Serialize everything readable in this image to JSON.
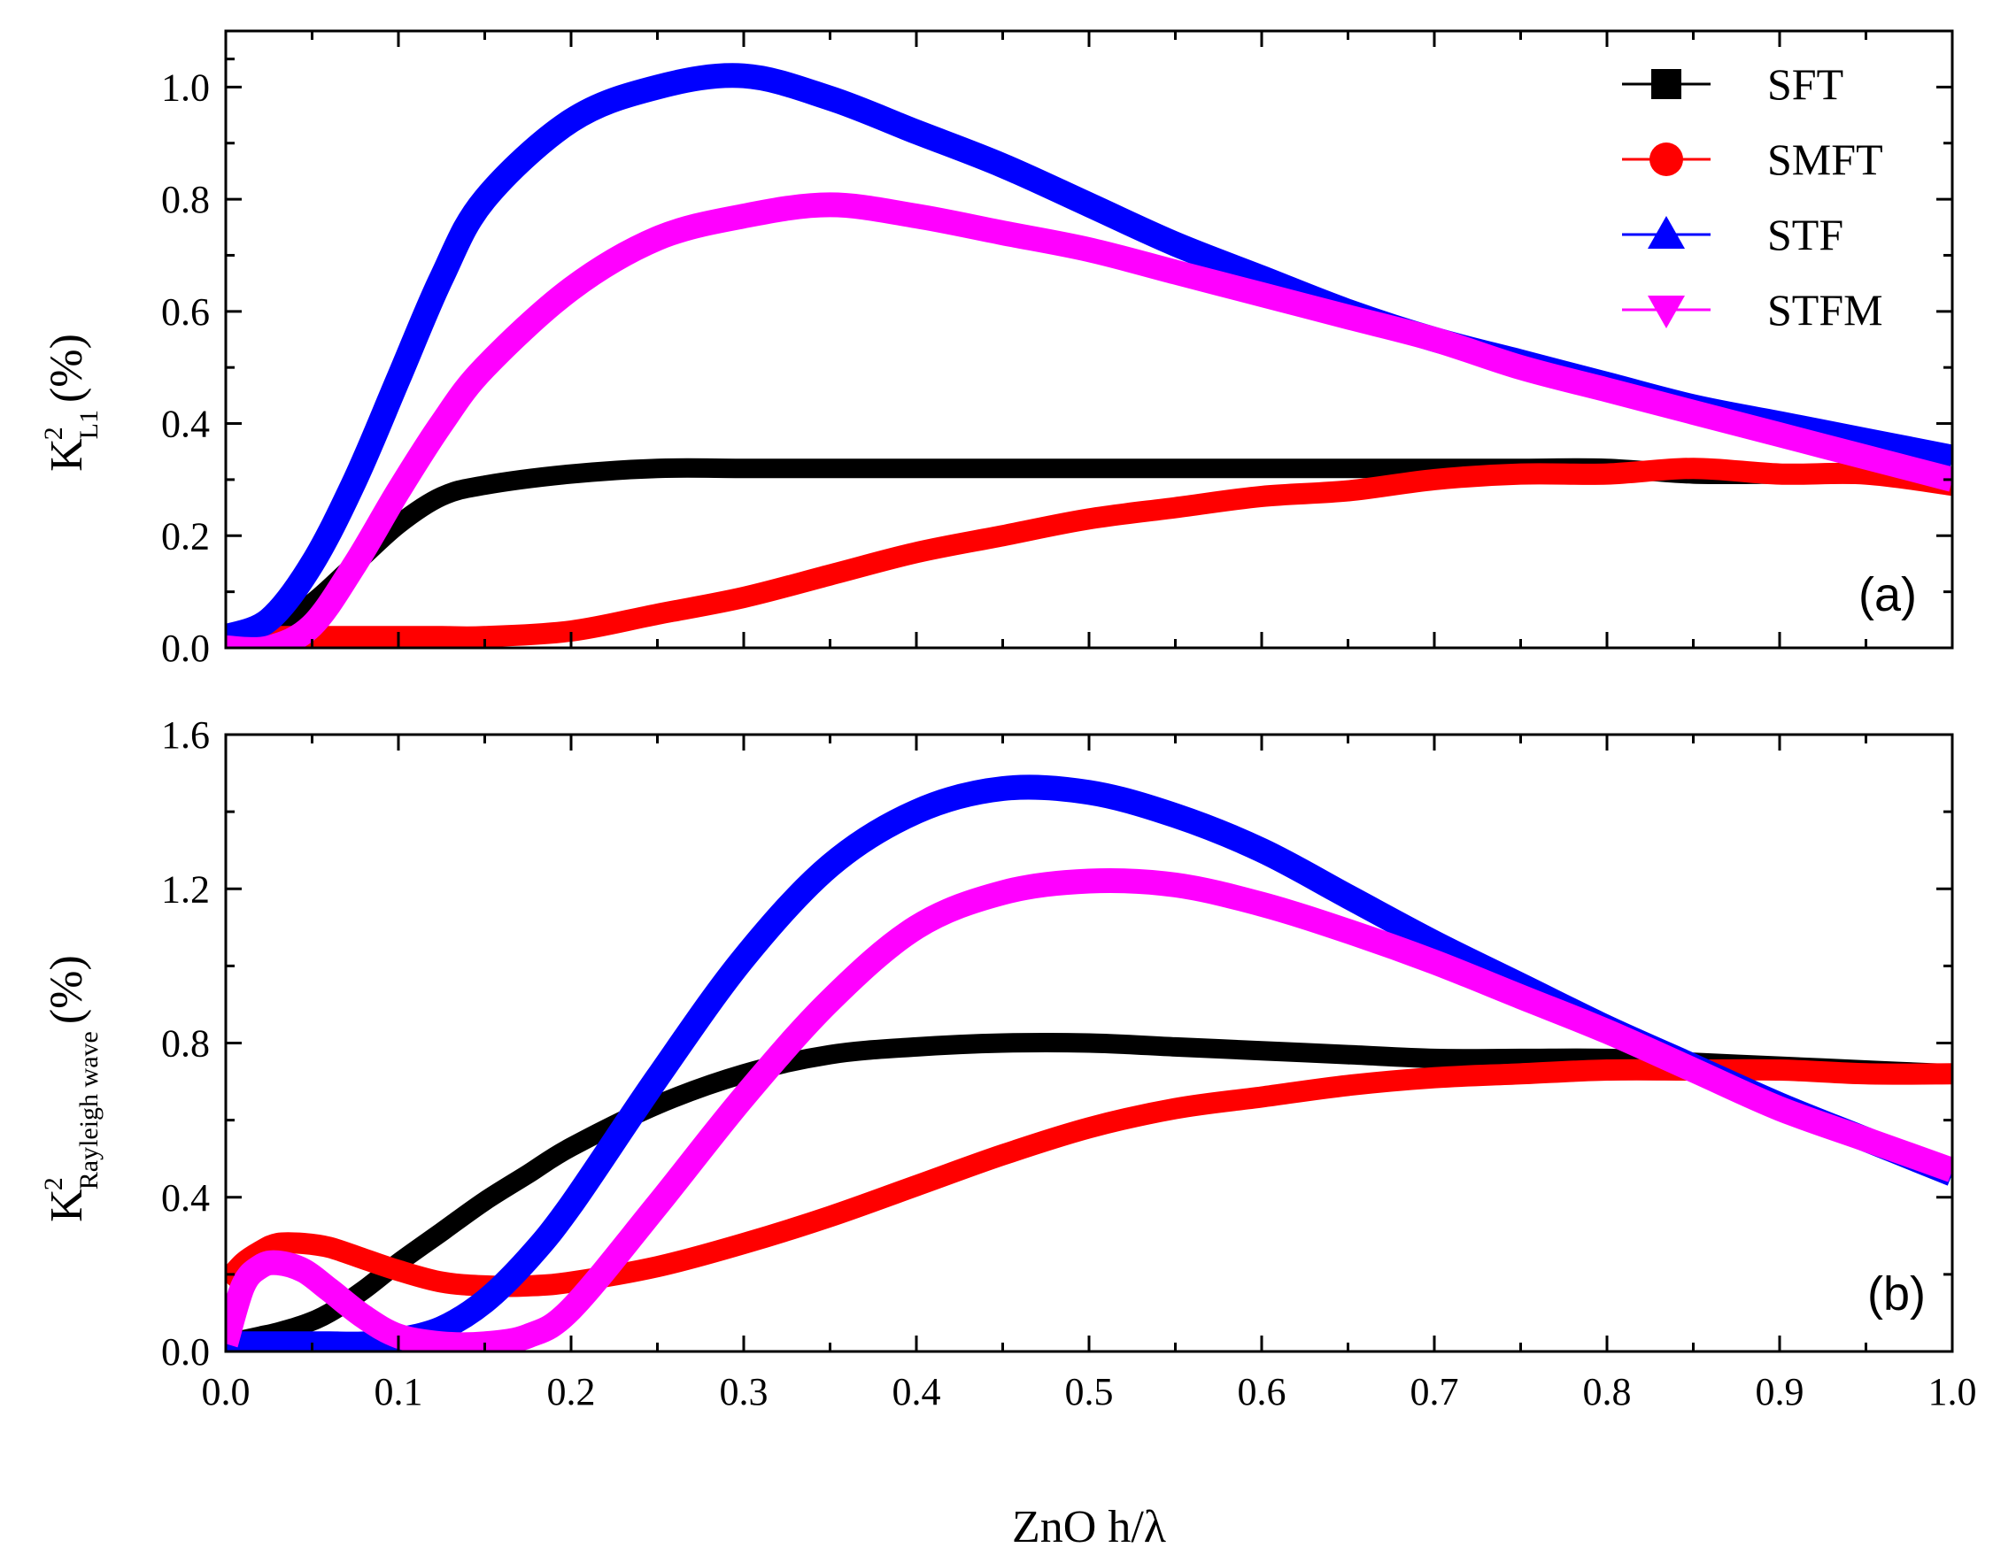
{
  "figure": {
    "xlabel": "ZnO h/λ",
    "xticks": [
      "0.0",
      "0.1",
      "0.2",
      "0.3",
      "0.4",
      "0.5",
      "0.6",
      "0.7",
      "0.8",
      "0.9",
      "1.0"
    ]
  },
  "legend": [
    {
      "name": "SFT",
      "color": "#000000",
      "marker": "square"
    },
    {
      "name": "SMFT",
      "color": "#ff0000",
      "marker": "circle"
    },
    {
      "name": "STF",
      "color": "#0000ff",
      "marker": "triangle-up"
    },
    {
      "name": "STFM",
      "color": "#ff00ff",
      "marker": "triangle-down"
    }
  ],
  "chart_data": [
    {
      "type": "line",
      "panel_label": "(a)",
      "ylabel": {
        "main": "K",
        "sup": "2",
        "sub": "L1",
        "unit": "(%)"
      },
      "xlim": [
        0,
        1.0
      ],
      "ylim": [
        0,
        1.1
      ],
      "yticks": [
        "0.0",
        "0.2",
        "0.4",
        "0.6",
        "0.8",
        "1.0"
      ],
      "x": [
        0.0,
        0.025,
        0.05,
        0.075,
        0.1,
        0.125,
        0.15,
        0.2,
        0.25,
        0.3,
        0.35,
        0.4,
        0.45,
        0.5,
        0.55,
        0.6,
        0.65,
        0.7,
        0.75,
        0.8,
        0.85,
        0.9,
        0.95,
        1.0
      ],
      "series": [
        {
          "name": "SFT",
          "values": [
            0.02,
            0.03,
            0.08,
            0.15,
            0.22,
            0.27,
            0.29,
            0.31,
            0.32,
            0.32,
            0.32,
            0.32,
            0.32,
            0.32,
            0.32,
            0.32,
            0.32,
            0.32,
            0.32,
            0.32,
            0.31,
            0.31,
            0.31,
            0.3
          ]
        },
        {
          "name": "SMFT",
          "values": [
            0.02,
            0.02,
            0.02,
            0.02,
            0.02,
            0.02,
            0.02,
            0.03,
            0.06,
            0.09,
            0.13,
            0.17,
            0.2,
            0.23,
            0.25,
            0.27,
            0.28,
            0.3,
            0.31,
            0.31,
            0.32,
            0.31,
            0.31,
            0.29
          ]
        },
        {
          "name": "STF",
          "values": [
            0.02,
            0.05,
            0.15,
            0.3,
            0.48,
            0.66,
            0.8,
            0.94,
            1.0,
            1.02,
            0.98,
            0.92,
            0.86,
            0.79,
            0.72,
            0.66,
            0.6,
            0.55,
            0.51,
            0.47,
            0.43,
            0.4,
            0.37,
            0.34
          ]
        },
        {
          "name": "STFM",
          "values": [
            0.0,
            0.0,
            0.04,
            0.15,
            0.28,
            0.4,
            0.5,
            0.64,
            0.73,
            0.77,
            0.79,
            0.77,
            0.74,
            0.71,
            0.67,
            0.63,
            0.59,
            0.55,
            0.5,
            0.46,
            0.42,
            0.38,
            0.34,
            0.3
          ]
        }
      ]
    },
    {
      "type": "line",
      "panel_label": "(b)",
      "ylabel": {
        "main": "K",
        "sup": "2",
        "sub": "Rayleigh wave",
        "unit": "(%)"
      },
      "xlim": [
        0,
        1.0
      ],
      "ylim": [
        0,
        1.6
      ],
      "yticks": [
        "0.0",
        "0.4",
        "0.8",
        "1.2",
        "1.6"
      ],
      "x": [
        0.0,
        0.01,
        0.02,
        0.03,
        0.045,
        0.06,
        0.08,
        0.1,
        0.125,
        0.15,
        0.175,
        0.2,
        0.25,
        0.3,
        0.35,
        0.4,
        0.45,
        0.5,
        0.55,
        0.6,
        0.65,
        0.7,
        0.75,
        0.8,
        0.85,
        0.9,
        0.95,
        1.0
      ],
      "series": [
        {
          "name": "SFT",
          "values": [
            0.02,
            0.03,
            0.04,
            0.05,
            0.07,
            0.1,
            0.16,
            0.23,
            0.31,
            0.39,
            0.46,
            0.53,
            0.64,
            0.72,
            0.77,
            0.79,
            0.8,
            0.8,
            0.79,
            0.78,
            0.77,
            0.76,
            0.76,
            0.76,
            0.75,
            0.74,
            0.73,
            0.72
          ]
        },
        {
          "name": "SMFT",
          "values": [
            0.18,
            0.23,
            0.26,
            0.28,
            0.28,
            0.27,
            0.24,
            0.21,
            0.18,
            0.17,
            0.17,
            0.18,
            0.22,
            0.28,
            0.35,
            0.43,
            0.51,
            0.58,
            0.63,
            0.66,
            0.69,
            0.71,
            0.72,
            0.73,
            0.73,
            0.73,
            0.72,
            0.72
          ]
        },
        {
          "name": "STF",
          "values": [
            0.02,
            0.02,
            0.02,
            0.02,
            0.02,
            0.02,
            0.02,
            0.03,
            0.06,
            0.13,
            0.24,
            0.38,
            0.71,
            1.02,
            1.26,
            1.4,
            1.46,
            1.45,
            1.39,
            1.3,
            1.18,
            1.06,
            0.95,
            0.84,
            0.74,
            0.64,
            0.55,
            0.46
          ]
        },
        {
          "name": "STFM",
          "values": [
            0.02,
            0.17,
            0.22,
            0.23,
            0.21,
            0.16,
            0.09,
            0.04,
            0.02,
            0.02,
            0.04,
            0.11,
            0.38,
            0.66,
            0.91,
            1.1,
            1.19,
            1.22,
            1.21,
            1.16,
            1.09,
            1.01,
            0.92,
            0.83,
            0.73,
            0.63,
            0.55,
            0.47
          ]
        }
      ]
    }
  ]
}
